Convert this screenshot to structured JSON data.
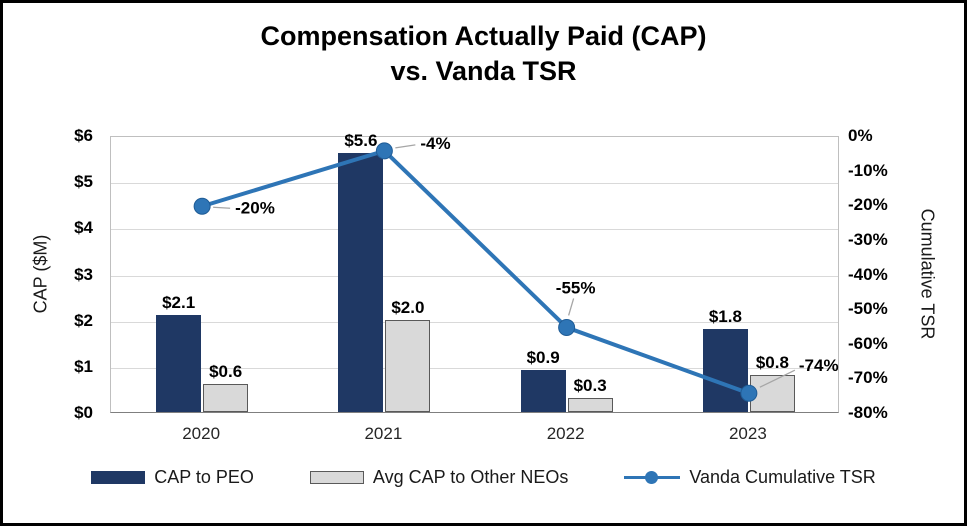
{
  "chart_data": {
    "type": "bar+line",
    "title_line1": "Compensation Actually Paid (CAP)",
    "title_line2": "vs. Vanda TSR",
    "categories": [
      "2020",
      "2021",
      "2022",
      "2023"
    ],
    "series": [
      {
        "name": "CAP to PEO",
        "type": "bar",
        "values": [
          2.1,
          5.6,
          0.9,
          1.8
        ],
        "labels": [
          "$2.1",
          "$5.6",
          "$0.9",
          "$1.8"
        ],
        "color": "#1F3864"
      },
      {
        "name": "Avg CAP to Other NEOs",
        "type": "bar",
        "values": [
          0.6,
          2.0,
          0.3,
          0.8
        ],
        "labels": [
          "$0.6",
          "$2.0",
          "$0.3",
          "$0.8"
        ],
        "color": "#D9D9D9",
        "border": "#595959"
      },
      {
        "name": "Vanda Cumulative TSR",
        "type": "line",
        "values": [
          -20,
          -4,
          -55,
          -74
        ],
        "labels": [
          "-20%",
          "-4%",
          "-55%",
          "-74%"
        ],
        "color": "#2E75B6"
      }
    ],
    "ylabel_left": "CAP ($M)",
    "ylabel_right": "Cumulative TSR",
    "left_axis": {
      "min": 0,
      "max": 6,
      "ticks": [
        "$0",
        "$1",
        "$2",
        "$3",
        "$4",
        "$5",
        "$6"
      ]
    },
    "right_axis": {
      "min": -80,
      "max": 0,
      "ticks": [
        "0%",
        "-10%",
        "-20%",
        "-30%",
        "-40%",
        "-50%",
        "-60%",
        "-70%",
        "-80%"
      ]
    },
    "legend": [
      {
        "label": "CAP to PEO",
        "swatch": "bar",
        "color": "#1F3864"
      },
      {
        "label": "Avg CAP to Other NEOs",
        "swatch": "bar",
        "color": "#D9D9D9",
        "border": "#595959"
      },
      {
        "label": "Vanda Cumulative TSR",
        "swatch": "line",
        "color": "#2E75B6"
      }
    ],
    "layout": {
      "grid": "horizontal",
      "legend_position": "bottom"
    }
  }
}
